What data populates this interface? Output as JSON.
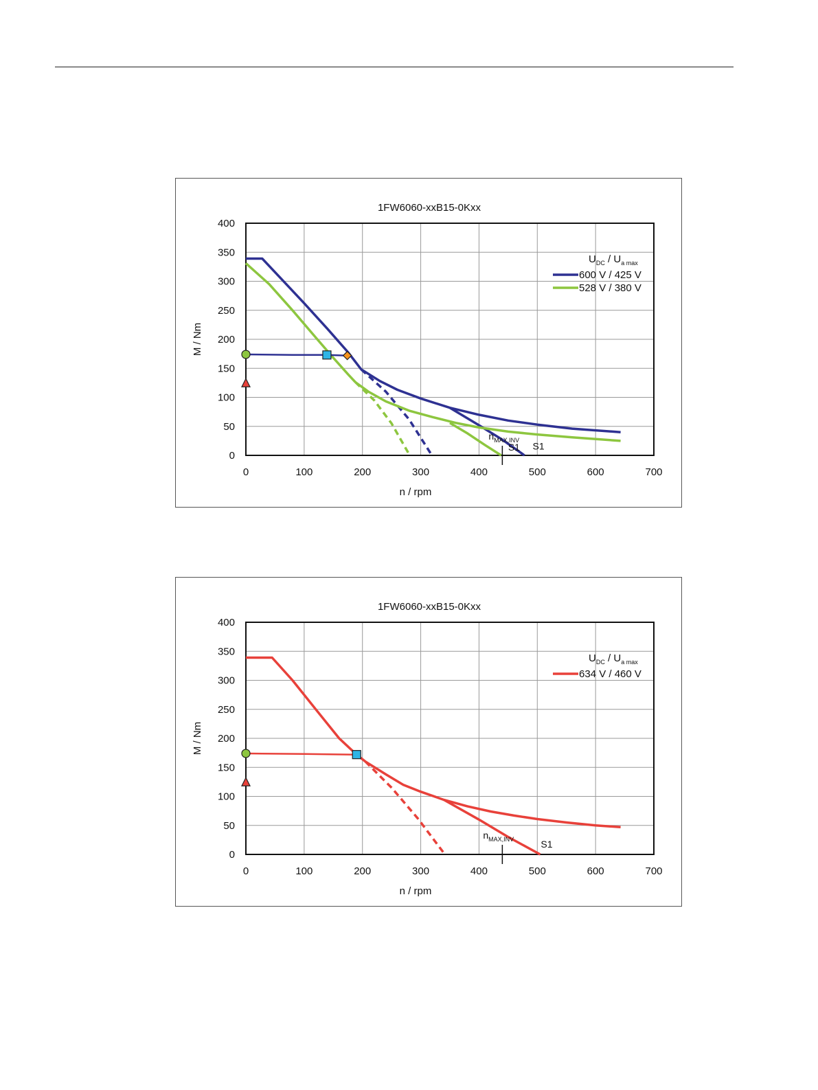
{
  "chart_data": [
    {
      "type": "line",
      "title": "1FW6060-xxB15-0Kxx",
      "xlabel": "n / rpm",
      "ylabel": "M / Nm",
      "xlim": [
        0,
        700
      ],
      "ylim": [
        0,
        400
      ],
      "xticks": [
        "0",
        "100",
        "200",
        "300",
        "400",
        "500",
        "600",
        "700"
      ],
      "yticks": [
        "0",
        "50",
        "100",
        "150",
        "200",
        "250",
        "300",
        "350",
        "400"
      ],
      "grid": true,
      "legend_position": "top-right",
      "legend_header": {
        "u1": "U",
        "u1_sub": "DC",
        "sep": "/",
        "u2": "U",
        "u2_sub": "a max"
      },
      "series": [
        {
          "name": "600 V / 425 V",
          "color": "#2e3192",
          "max_torque": [
            [
              0,
              339
            ],
            [
              28,
              339
            ],
            [
              60,
              305
            ],
            [
              100,
              262
            ],
            [
              140,
              218
            ],
            [
              175,
              178
            ],
            [
              198,
              148
            ]
          ],
          "field_weakening": [
            [
              198,
              148
            ],
            [
              230,
              128
            ],
            [
              260,
              113
            ],
            [
              300,
              98
            ],
            [
              350,
              82
            ],
            [
              400,
              70
            ],
            [
              450,
              60
            ],
            [
              500,
              53
            ],
            [
              560,
              46
            ],
            [
              643,
              40
            ]
          ],
          "dashed_limit": [
            [
              198,
              148
            ],
            [
              240,
              110
            ],
            [
              280,
              62
            ],
            [
              318,
              2
            ]
          ],
          "s1": [
            [
              350,
              82
            ],
            [
              400,
              52
            ],
            [
              440,
              27
            ],
            [
              478,
              0
            ]
          ]
        },
        {
          "name": "528 V / 380 V",
          "color": "#8dc63f",
          "max_torque": [
            [
              0,
              331
            ],
            [
              40,
              295
            ],
            [
              80,
              250
            ],
            [
              120,
              203
            ],
            [
              150,
              168
            ],
            [
              175,
              140
            ],
            [
              188,
              126
            ]
          ],
          "field_weakening": [
            [
              188,
              126
            ],
            [
              210,
              110
            ],
            [
              240,
              93
            ],
            [
              280,
              77
            ],
            [
              320,
              66
            ],
            [
              360,
              56
            ],
            [
              400,
              48
            ],
            [
              450,
              41
            ],
            [
              500,
              36
            ],
            [
              560,
              31
            ],
            [
              643,
              25
            ]
          ],
          "dashed_limit": [
            [
              188,
              126
            ],
            [
              220,
              95
            ],
            [
              250,
              55
            ],
            [
              280,
              2
            ]
          ],
          "s1": [
            [
              350,
              56
            ],
            [
              380,
              38
            ],
            [
              410,
              18
            ],
            [
              438,
              0
            ]
          ]
        }
      ],
      "rated_torque_line": {
        "color": "#2e3192",
        "points": [
          [
            0,
            174
          ],
          [
            80,
            173
          ],
          [
            139,
            173
          ],
          [
            174,
            172
          ]
        ]
      },
      "markers": [
        {
          "shape": "circle",
          "color": "#8dc63f",
          "x": 0,
          "y": 174
        },
        {
          "shape": "triangle",
          "color": "#e8413a",
          "x": 0,
          "y": 124
        },
        {
          "shape": "square",
          "color": "#2fb5e6",
          "x": 139,
          "y": 173
        },
        {
          "shape": "diamond",
          "color": "#f7941d",
          "x": 174,
          "y": 172
        }
      ],
      "nmax_inv": {
        "label": "n",
        "sub": "MAX,INV",
        "x": 440
      },
      "annotations": [
        {
          "text": "S1",
          "x": 450,
          "y": 8
        },
        {
          "text": "S1",
          "x": 492,
          "y": 10
        }
      ]
    },
    {
      "type": "line",
      "title": "1FW6060-xxB15-0Kxx",
      "xlabel": "n / rpm",
      "ylabel": "M / Nm",
      "xlim": [
        0,
        700
      ],
      "ylim": [
        0,
        400
      ],
      "xticks": [
        "0",
        "100",
        "200",
        "300",
        "400",
        "500",
        "600",
        "700"
      ],
      "yticks": [
        "0",
        "50",
        "100",
        "150",
        "200",
        "250",
        "300",
        "350",
        "400"
      ],
      "grid": true,
      "legend_position": "top-right",
      "legend_header": {
        "u1": "U",
        "u1_sub": "DC",
        "sep": "/",
        "u2": "U",
        "u2_sub": "a max"
      },
      "series": [
        {
          "name": "634 V / 460 V",
          "color": "#e8413a",
          "max_torque": [
            [
              0,
              339
            ],
            [
              45,
              339
            ],
            [
              80,
              300
            ],
            [
              120,
              250
            ],
            [
              160,
              200
            ],
            [
              190,
              172
            ],
            [
              205,
              160
            ]
          ],
          "field_weakening": [
            [
              205,
              160
            ],
            [
              240,
              138
            ],
            [
              270,
              120
            ],
            [
              300,
              108
            ],
            [
              340,
              94
            ],
            [
              380,
              83
            ],
            [
              420,
              74
            ],
            [
              460,
              67
            ],
            [
              500,
              61
            ],
            [
              550,
              55
            ],
            [
              600,
              50
            ],
            [
              643,
              47
            ]
          ],
          "dashed_limit": [
            [
              205,
              160
            ],
            [
              250,
              115
            ],
            [
              295,
              62
            ],
            [
              340,
              2
            ]
          ],
          "s1": [
            [
              340,
              94
            ],
            [
              400,
              60
            ],
            [
              450,
              30
            ],
            [
              505,
              0
            ]
          ]
        }
      ],
      "rated_torque_line": {
        "color": "#e8413a",
        "points": [
          [
            0,
            174
          ],
          [
            100,
            173
          ],
          [
            190,
            172
          ]
        ]
      },
      "markers": [
        {
          "shape": "circle",
          "color": "#8dc63f",
          "x": 0,
          "y": 174
        },
        {
          "shape": "triangle",
          "color": "#e8413a",
          "x": 0,
          "y": 124
        },
        {
          "shape": "square",
          "color": "#2fb5e6",
          "x": 190,
          "y": 172
        }
      ],
      "nmax_inv": {
        "label": "n",
        "sub": "MAX,INV",
        "x": 440
      },
      "annotations": [
        {
          "text": "S1",
          "x": 506,
          "y": 12
        }
      ]
    }
  ]
}
